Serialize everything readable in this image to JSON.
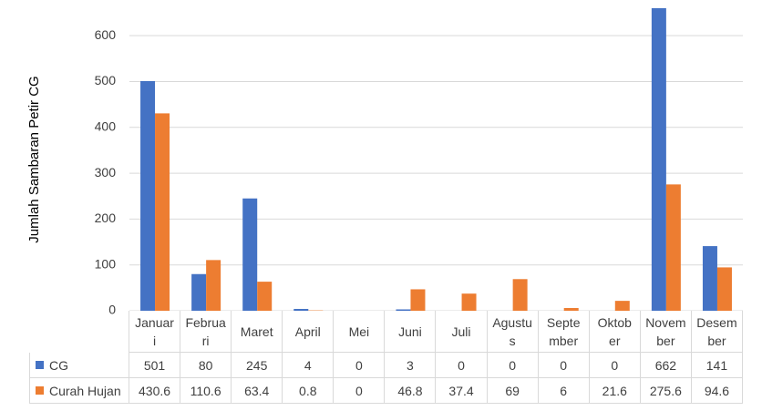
{
  "chart_data": {
    "type": "bar",
    "y_label": "Jumlah Sambaran Petir CG",
    "categories": [
      "Januari",
      "Februari",
      "Maret",
      "April",
      "Mei",
      "Juni",
      "Juli",
      "Agustus",
      "September",
      "Oktober",
      "November",
      "Desember"
    ],
    "series": [
      {
        "name": "CG",
        "color": "#4472c4",
        "values": [
          501,
          80,
          245,
          4,
          0,
          3,
          0,
          0,
          0,
          0,
          662,
          141
        ]
      },
      {
        "name": "Curah Hujan",
        "color": "#ed7d31",
        "values": [
          430.6,
          110.6,
          63.4,
          0.8,
          0,
          46.8,
          37.4,
          69,
          6,
          21.6,
          275.6,
          94.6
        ]
      }
    ],
    "ylim": [
      0,
      660
    ],
    "yticks": [
      0,
      100,
      200,
      300,
      400,
      500,
      600
    ],
    "grid": true
  }
}
